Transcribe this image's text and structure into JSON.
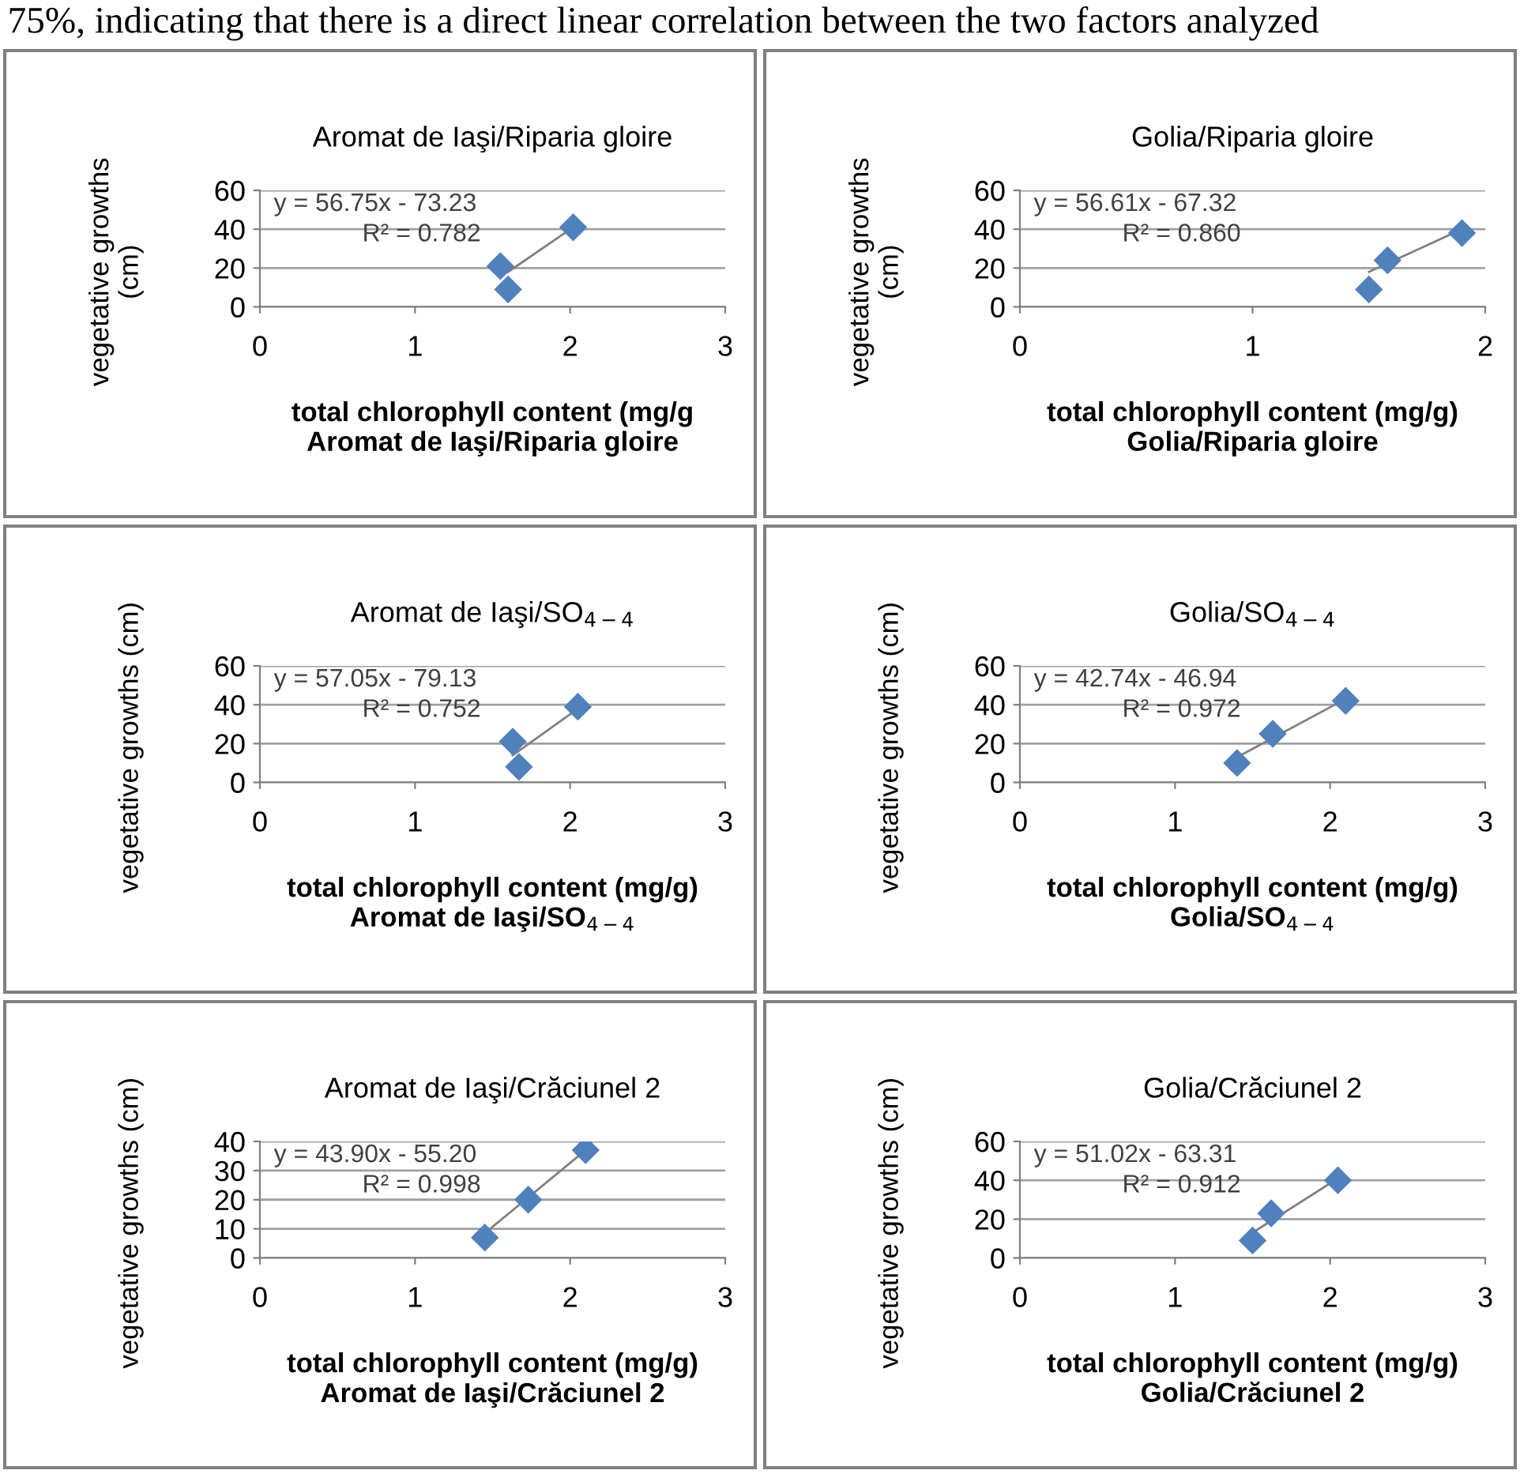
{
  "chart_data": [
    {
      "type": "other",
      "annotations": [
        "75%, indicating that there is a direct linear correlation between the two factors analyzed"
      ]
    },
    {
      "type": "scatter",
      "title": "Aromat de Iaşi/Riparia gloire",
      "xlabel": "total chlorophyll content (mg/g\nAromat de Iaşi/Riparia gloire",
      "ylabel": "vegetative growths\n(cm)",
      "annotations": [
        "y = 56.75x - 73.23",
        "R² = 0.782"
      ],
      "xlim": [
        0,
        3
      ],
      "xticks": [
        0,
        1,
        2,
        3
      ],
      "ylim": [
        0,
        60
      ],
      "yticks": [
        0,
        20,
        40,
        60
      ],
      "grid": "y",
      "series": [
        {
          "type": "scatter",
          "color": "#4f81bd",
          "marker": "diamond",
          "x": [
            1.55,
            1.6,
            2.02
          ],
          "values": [
            21,
            9,
            41
          ]
        },
        {
          "type": "line",
          "color": "#808080",
          "marker": "none",
          "x": [
            1.6,
            2.02
          ],
          "values": [
            18,
            41
          ]
        }
      ]
    },
    {
      "type": "scatter",
      "title": "Golia/Riparia gloire",
      "xlabel": "total chlorophyll content (mg/g)\nGolia/Riparia gloire",
      "ylabel": "vegetative growths\n(cm)",
      "annotations": [
        "y = 56.61x - 67.32",
        "R² = 0.860"
      ],
      "xlim": [
        0,
        2
      ],
      "xticks": [
        0,
        1,
        2
      ],
      "ylim": [
        0,
        60
      ],
      "yticks": [
        0,
        20,
        40,
        60
      ],
      "grid": "y",
      "series": [
        {
          "type": "scatter",
          "color": "#4f81bd",
          "marker": "diamond",
          "x": [
            1.5,
            1.58,
            1.9
          ],
          "values": [
            9,
            24,
            38
          ]
        },
        {
          "type": "line",
          "color": "#808080",
          "marker": "none",
          "x": [
            1.5,
            1.9
          ],
          "values": [
            18,
            40
          ]
        }
      ]
    },
    {
      "type": "scatter",
      "title": "Aromat de Iaşi/SO$_{4−4}$",
      "xlabel": "total chlorophyll content (mg/g)\nAromat de Iaşi/SO$_{4−4}$",
      "ylabel": "vegetative growths (cm)",
      "annotations": [
        "y = 57.05x - 79.13",
        "R² = 0.752"
      ],
      "xlim": [
        0,
        3
      ],
      "xticks": [
        0,
        1,
        2,
        3
      ],
      "ylim": [
        0,
        60
      ],
      "yticks": [
        0,
        20,
        40,
        60
      ],
      "grid": "y",
      "series": [
        {
          "type": "scatter",
          "color": "#4f81bd",
          "marker": "diamond",
          "x": [
            1.63,
            1.67,
            2.05
          ],
          "values": [
            21,
            8,
            39
          ]
        },
        {
          "type": "line",
          "color": "#808080",
          "marker": "none",
          "x": [
            1.63,
            2.05
          ],
          "values": [
            14,
            38
          ]
        }
      ]
    },
    {
      "type": "scatter",
      "title": "Golia/SO$_{4−4}$",
      "xlabel": "total chlorophyll content (mg/g)\nGolia/SO$_{4−4}$",
      "ylabel": "vegetative growths (cm)",
      "annotations": [
        "y = 42.74x - 46.94",
        "R² = 0.972"
      ],
      "xlim": [
        0,
        3
      ],
      "xticks": [
        0,
        1,
        2,
        3
      ],
      "ylim": [
        0,
        60
      ],
      "yticks": [
        0,
        20,
        40,
        60
      ],
      "grid": "y",
      "series": [
        {
          "type": "scatter",
          "color": "#4f81bd",
          "marker": "diamond",
          "x": [
            1.4,
            1.63,
            2.1
          ],
          "values": [
            10,
            25,
            42
          ]
        },
        {
          "type": "line",
          "color": "#808080",
          "marker": "none",
          "x": [
            1.4,
            2.1
          ],
          "values": [
            13,
            43
          ]
        }
      ]
    },
    {
      "type": "scatter",
      "title": "Aromat de Iaşi/Crăciunel 2",
      "xlabel": "total chlorophyll content (mg/g)\nAromat de Iaşi/Crăciunel 2",
      "ylabel": "vegetative growths (cm)",
      "annotations": [
        "y = 43.90x - 55.20",
        "R² = 0.998"
      ],
      "xlim": [
        0,
        3
      ],
      "xticks": [
        0,
        1,
        2,
        3
      ],
      "ylim": [
        0,
        40
      ],
      "yticks": [
        0,
        10,
        20,
        30,
        40
      ],
      "grid": "y",
      "series": [
        {
          "type": "scatter",
          "color": "#4f81bd",
          "marker": "diamond",
          "x": [
            1.45,
            1.73,
            2.1
          ],
          "values": [
            7,
            20,
            37
          ]
        },
        {
          "type": "line",
          "color": "#808080",
          "marker": "none",
          "x": [
            1.45,
            2.1
          ],
          "values": [
            8.5,
            37
          ]
        }
      ]
    },
    {
      "type": "scatter",
      "title": "Golia/Crăciunel 2",
      "xlabel": "total chlorophyll content (mg/g)\nGolia/Crăciunel 2",
      "ylabel": "vegetative growths (cm)",
      "annotations": [
        "y = 51.02x - 63.31",
        "R² = 0.912"
      ],
      "xlim": [
        0,
        3
      ],
      "xticks": [
        0,
        1,
        2,
        3
      ],
      "ylim": [
        0,
        60
      ],
      "yticks": [
        0,
        20,
        40,
        60
      ],
      "grid": "y",
      "series": [
        {
          "type": "scatter",
          "color": "#4f81bd",
          "marker": "diamond",
          "x": [
            1.5,
            1.62,
            2.05
          ],
          "values": [
            9,
            23,
            40
          ]
        },
        {
          "type": "line",
          "color": "#808080",
          "marker": "none",
          "x": [
            1.5,
            2.05
          ],
          "values": [
            13,
            41
          ]
        }
      ]
    }
  ]
}
